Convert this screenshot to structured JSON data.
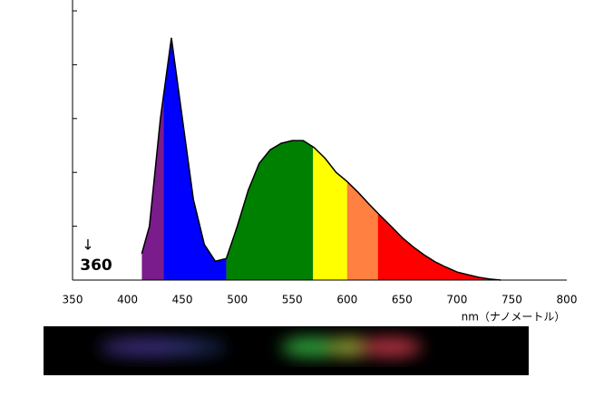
{
  "chart_data": {
    "type": "area",
    "x": [
      413,
      420,
      430,
      440,
      450,
      460,
      470,
      480,
      490,
      500,
      510,
      520,
      530,
      540,
      550,
      560,
      570,
      580,
      590,
      600,
      610,
      620,
      630,
      640,
      650,
      660,
      670,
      680,
      690,
      700,
      710,
      720,
      730,
      740
    ],
    "values": [
      0.49,
      1.0,
      3.0,
      4.5,
      3.0,
      1.5,
      0.66,
      0.35,
      0.4,
      1.0,
      1.67,
      2.17,
      2.42,
      2.54,
      2.59,
      2.59,
      2.46,
      2.26,
      2.0,
      1.83,
      1.63,
      1.41,
      1.2,
      1.0,
      0.79,
      0.62,
      0.47,
      0.34,
      0.24,
      0.15,
      0.1,
      0.05,
      0.02,
      0
    ],
    "bands": [
      {
        "start": 413,
        "end": 433,
        "color": "#7a1c8c"
      },
      {
        "start": 433,
        "end": 490,
        "color": "#0000ff"
      },
      {
        "start": 490,
        "end": 569,
        "color": "#008000"
      },
      {
        "start": 569,
        "end": 600,
        "color": "#ffff00"
      },
      {
        "start": 600,
        "end": 628,
        "color": "#ff8040"
      },
      {
        "start": 628,
        "end": 750,
        "color": "#ff0000"
      }
    ],
    "line_color": "#000000",
    "xlim": [
      350,
      800
    ],
    "xticks": [
      350,
      400,
      450,
      500,
      550,
      600,
      650,
      700,
      750,
      800
    ],
    "ylim": [
      0,
      5
    ],
    "yticks": [
      1,
      2,
      3,
      4,
      5
    ],
    "xlabel": "nm（ナノメートル）",
    "annotations": [
      "↓",
      "360"
    ]
  }
}
